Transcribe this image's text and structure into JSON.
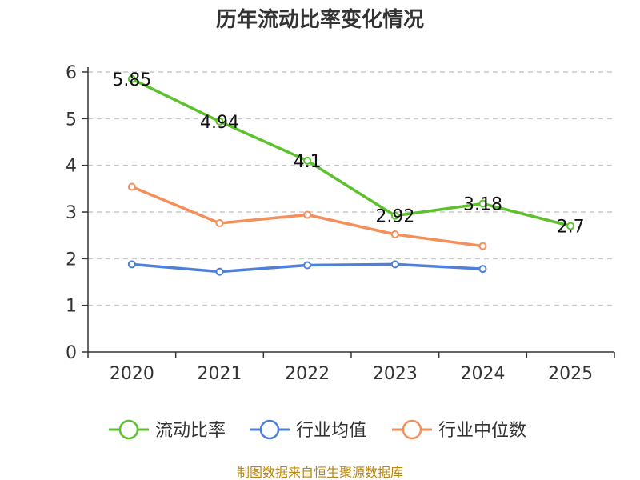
{
  "chart_data": {
    "type": "line",
    "title": "历年流动比率变化情况",
    "categories": [
      "2020",
      "2021",
      "2022",
      "2023",
      "2024",
      "2025"
    ],
    "ylim": [
      0,
      6
    ],
    "yticks": [
      0,
      1,
      2,
      3,
      4,
      5,
      6
    ],
    "grid": true,
    "legend_position": "bottom",
    "series": [
      {
        "name": "流动比率",
        "color": "#5cc12c",
        "values": [
          5.85,
          4.94,
          4.1,
          2.92,
          3.18,
          2.7
        ],
        "labels": [
          "5.85",
          "4.94",
          "4.1",
          "2.92",
          "3.18",
          "2.7"
        ],
        "show_labels": true
      },
      {
        "name": "行业均值",
        "color": "#4f7fd9",
        "values": [
          1.88,
          1.72,
          1.86,
          1.88,
          1.78,
          null
        ],
        "show_labels": false
      },
      {
        "name": "行业中位数",
        "color": "#f58f5a",
        "values": [
          3.54,
          2.76,
          2.94,
          2.52,
          2.27,
          null
        ],
        "show_labels": false
      }
    ],
    "source": "制图数据来自恒生聚源数据库"
  }
}
